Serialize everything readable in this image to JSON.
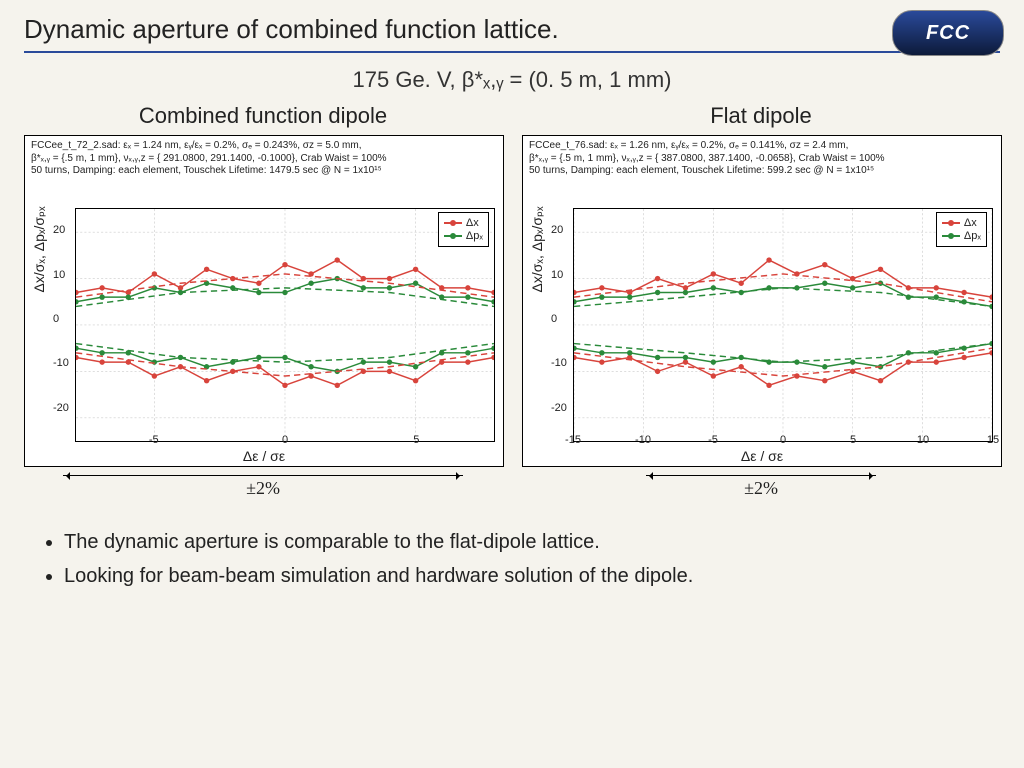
{
  "title": "Dynamic aperture of combined function lattice.",
  "logo_text": "FCC",
  "subtitle": "175 Ge. V, β*ₓ,ᵧ = (0. 5 m, 1 mm)",
  "charts": [
    {
      "heading": "Combined function dipole",
      "header": "FCCee_t_72_2.sad: εₓ = 1.24 nm, εᵧ/εₓ = 0.2%, σₑ = 0.243%, σz = 5.0 mm,\nβ*ₓ,ᵧ = {.5 m, 1 mm}, νₓ,ᵧ,z = { 291.0800, 291.1400, -0.1000}, Crab Waist = 100%\n50 turns, Damping: each element, Touschek Lifetime: 1479.5 sec @ N = 1x10¹⁵",
      "xlabel": "Δε / σε",
      "ylabel": "Δx/σₓ, Δpₓ/σₚₓ",
      "xlim": [
        -8,
        8
      ],
      "ylim": [
        -25,
        25
      ],
      "xticks": [
        -5,
        0,
        5
      ],
      "yticks": [
        -20,
        -10,
        0,
        10,
        20
      ],
      "grid_color": "#cccccc",
      "bg": "#ffffff",
      "arrow_width": 400,
      "range_label": "±2%",
      "series": [
        {
          "name": "Δx_top",
          "color": "#d8443c",
          "marker": "circle",
          "x": [
            -8,
            -7,
            -6,
            -5,
            -4,
            -3,
            -2,
            -1,
            0,
            1,
            2,
            3,
            4,
            5,
            6,
            7,
            8
          ],
          "y": [
            7,
            8,
            7,
            11,
            8,
            12,
            10,
            9,
            13,
            11,
            14,
            10,
            10,
            12,
            8,
            8,
            7
          ]
        },
        {
          "name": "Δpx_top",
          "color": "#2a8a3a",
          "marker": "circle",
          "x": [
            -8,
            -7,
            -6,
            -5,
            -4,
            -3,
            -2,
            -1,
            0,
            1,
            2,
            3,
            4,
            5,
            6,
            7,
            8
          ],
          "y": [
            5,
            6,
            6,
            8,
            7,
            9,
            8,
            7,
            7,
            9,
            10,
            8,
            8,
            9,
            6,
            6,
            5
          ]
        },
        {
          "name": "Δx_bot",
          "color": "#d8443c",
          "marker": "circle",
          "x": [
            -8,
            -7,
            -6,
            -5,
            -4,
            -3,
            -2,
            -1,
            0,
            1,
            2,
            3,
            4,
            5,
            6,
            7,
            8
          ],
          "y": [
            -7,
            -8,
            -8,
            -11,
            -9,
            -12,
            -10,
            -9,
            -13,
            -11,
            -13,
            -10,
            -10,
            -12,
            -8,
            -8,
            -7
          ]
        },
        {
          "name": "Δpx_bot",
          "color": "#2a8a3a",
          "marker": "circle",
          "x": [
            -8,
            -7,
            -6,
            -5,
            -4,
            -3,
            -2,
            -1,
            0,
            1,
            2,
            3,
            4,
            5,
            6,
            7,
            8
          ],
          "y": [
            -5,
            -6,
            -6,
            -8,
            -7,
            -9,
            -8,
            -7,
            -7,
            -9,
            -10,
            -8,
            -8,
            -9,
            -6,
            -6,
            -5
          ]
        },
        {
          "name": "dash1",
          "color": "#d8443c",
          "dash": true,
          "x": [
            -8,
            -4,
            0,
            4,
            8
          ],
          "y": [
            6,
            9,
            11,
            9,
            6
          ]
        },
        {
          "name": "dash2",
          "color": "#2a8a3a",
          "dash": true,
          "x": [
            -8,
            -4,
            0,
            4,
            8
          ],
          "y": [
            4,
            7,
            8,
            7,
            4
          ]
        },
        {
          "name": "dash3",
          "color": "#d8443c",
          "dash": true,
          "x": [
            -8,
            -4,
            0,
            4,
            8
          ],
          "y": [
            -6,
            -9,
            -11,
            -9,
            -6
          ]
        },
        {
          "name": "dash4",
          "color": "#2a8a3a",
          "dash": true,
          "x": [
            -8,
            -4,
            0,
            4,
            8
          ],
          "y": [
            -4,
            -7,
            -8,
            -7,
            -4
          ]
        }
      ],
      "legend": [
        {
          "label": "Δx",
          "color": "#d8443c"
        },
        {
          "label": "Δpₓ",
          "color": "#2a8a3a"
        }
      ]
    },
    {
      "heading": "Flat dipole",
      "header": "FCCee_t_76.sad: εₓ = 1.26 nm, εᵧ/εₓ = 0.2%, σₑ = 0.141%, σz = 2.4 mm,\nβ*ₓ,ᵧ = {.5 m, 1 mm}, νₓ,ᵧ,z = { 387.0800, 387.1400, -0.0658}, Crab Waist = 100%\n50 turns, Damping: each element, Touschek Lifetime: 599.2 sec @ N = 1x10¹⁵",
      "xlabel": "Δε / σε",
      "ylabel": "Δx/σₓ, Δpₓ/σₚₓ",
      "xlim": [
        -15,
        15
      ],
      "ylim": [
        -25,
        25
      ],
      "xticks": [
        -15,
        -10,
        -5,
        0,
        5,
        10,
        15
      ],
      "yticks": [
        -20,
        -10,
        0,
        10,
        20
      ],
      "grid_color": "#cccccc",
      "bg": "#ffffff",
      "arrow_width": 230,
      "range_label": "±2%",
      "series": [
        {
          "name": "Δx_top",
          "color": "#d8443c",
          "marker": "circle",
          "x": [
            -15,
            -13,
            -11,
            -9,
            -7,
            -5,
            -3,
            -1,
            1,
            3,
            5,
            7,
            9,
            11,
            13,
            15
          ],
          "y": [
            7,
            8,
            7,
            10,
            8,
            11,
            9,
            14,
            11,
            13,
            10,
            12,
            8,
            8,
            7,
            6
          ]
        },
        {
          "name": "Δpx_top",
          "color": "#2a8a3a",
          "marker": "circle",
          "x": [
            -15,
            -13,
            -11,
            -9,
            -7,
            -5,
            -3,
            -1,
            1,
            3,
            5,
            7,
            9,
            11,
            13,
            15
          ],
          "y": [
            5,
            6,
            6,
            7,
            7,
            8,
            7,
            8,
            8,
            9,
            8,
            9,
            6,
            6,
            5,
            4
          ]
        },
        {
          "name": "Δx_bot",
          "color": "#d8443c",
          "marker": "circle",
          "x": [
            -15,
            -13,
            -11,
            -9,
            -7,
            -5,
            -3,
            -1,
            1,
            3,
            5,
            7,
            9,
            11,
            13,
            15
          ],
          "y": [
            -7,
            -8,
            -7,
            -10,
            -8,
            -11,
            -9,
            -13,
            -11,
            -12,
            -10,
            -12,
            -8,
            -8,
            -7,
            -6
          ]
        },
        {
          "name": "Δpx_bot",
          "color": "#2a8a3a",
          "marker": "circle",
          "x": [
            -15,
            -13,
            -11,
            -9,
            -7,
            -5,
            -3,
            -1,
            1,
            3,
            5,
            7,
            9,
            11,
            13,
            15
          ],
          "y": [
            -5,
            -6,
            -6,
            -7,
            -7,
            -8,
            -7,
            -8,
            -8,
            -9,
            -8,
            -9,
            -6,
            -6,
            -5,
            -4
          ]
        },
        {
          "name": "dash1",
          "color": "#d8443c",
          "dash": true,
          "x": [
            -15,
            -7,
            0,
            7,
            15
          ],
          "y": [
            6,
            9,
            11,
            9,
            5
          ]
        },
        {
          "name": "dash2",
          "color": "#2a8a3a",
          "dash": true,
          "x": [
            -15,
            -7,
            0,
            7,
            15
          ],
          "y": [
            4,
            6,
            8,
            7,
            4
          ]
        },
        {
          "name": "dash3",
          "color": "#d8443c",
          "dash": true,
          "x": [
            -15,
            -7,
            0,
            7,
            15
          ],
          "y": [
            -6,
            -9,
            -11,
            -9,
            -5
          ]
        },
        {
          "name": "dash4",
          "color": "#2a8a3a",
          "dash": true,
          "x": [
            -15,
            -7,
            0,
            7,
            15
          ],
          "y": [
            -4,
            -6,
            -8,
            -7,
            -4
          ]
        }
      ],
      "legend": [
        {
          "label": "Δx",
          "color": "#d8443c"
        },
        {
          "label": "Δpₓ",
          "color": "#2a8a3a"
        }
      ]
    }
  ],
  "bullets": [
    "The dynamic aperture is comparable to the flat-dipole lattice.",
    "Looking for beam-beam simulation and hardware solution of the dipole."
  ]
}
